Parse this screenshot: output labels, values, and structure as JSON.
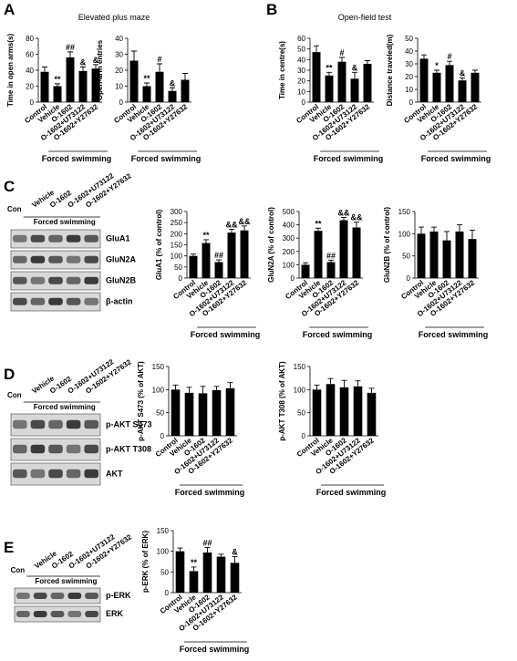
{
  "figure": {
    "panels": [
      {
        "letter": "A",
        "title": "Elevated plus maze"
      },
      {
        "letter": "B",
        "title": "Open-field test"
      },
      {
        "letter": "C"
      },
      {
        "letter": "D"
      },
      {
        "letter": "E"
      }
    ],
    "blots": [
      {
        "lanes": [
          "Con",
          "Vehicle",
          "O-1602",
          "O-1602+U73122",
          "O-1602+Y27632"
        ],
        "group": "Forced swimming",
        "bands": [
          "GluA1",
          "GluN2A",
          "GluN2B",
          "β-actin"
        ]
      },
      {
        "lanes": [
          "Con",
          "Vehicle",
          "O-1602",
          "O-1602+U73122",
          "O-1602+Y27632"
        ],
        "group": "Forced swimming",
        "bands": [
          "p-AKT S473",
          "p-AKT T308",
          "AKT"
        ]
      },
      {
        "lanes": [
          "Con",
          "Vehicle",
          "O-1602",
          "O-1602+U73122",
          "O-1602+Y27632"
        ],
        "group": "Forced swimming",
        "bands": [
          "p-ERK",
          "ERK"
        ]
      }
    ]
  },
  "chart_data": [
    {
      "type": "bar",
      "y_label": "Time in open arms(s)",
      "categories": [
        "Control",
        "Vehicle",
        "O-1602",
        "O-1602+U73122",
        "O-1602+Y27632"
      ],
      "group_label": "Forced swimming",
      "values": [
        38,
        20,
        56,
        39,
        42
      ],
      "errors": [
        6,
        3,
        7,
        5,
        5
      ],
      "annotations": [
        null,
        "**",
        "##",
        "&",
        "&"
      ],
      "color": "#000000",
      "ylim": [
        0,
        80
      ],
      "yticks": [
        0,
        20,
        40,
        60,
        80
      ]
    },
    {
      "type": "bar",
      "y_label": "Open-arm entries",
      "categories": [
        "Control",
        "Vehicle",
        "O-1602",
        "O-1602+U73122",
        "O-1602+Y27632"
      ],
      "group_label": "Forced swimming",
      "values": [
        26,
        10,
        19,
        7,
        14
      ],
      "errors": [
        6,
        2,
        5,
        2,
        4
      ],
      "annotations": [
        null,
        "**",
        "#",
        "&",
        null
      ],
      "color": "#000000",
      "ylim": [
        0,
        40
      ],
      "yticks": [
        0,
        10,
        20,
        30,
        40
      ]
    },
    {
      "type": "bar",
      "y_label": "Time in centre(s)",
      "categories": [
        "Control",
        "Vehicle",
        "O-1602",
        "O-1602+U73122",
        "O-1602+Y27632"
      ],
      "group_label": "Forced swimming",
      "values": [
        47,
        25,
        38,
        22,
        36
      ],
      "errors": [
        6,
        3,
        4,
        6,
        3
      ],
      "annotations": [
        null,
        "**",
        "#",
        "&",
        null
      ],
      "color": "#000000",
      "ylim": [
        0,
        60
      ],
      "yticks": [
        0,
        10,
        20,
        30,
        40,
        50,
        60
      ]
    },
    {
      "type": "bar",
      "y_label": "Distance traveled(m)",
      "categories": [
        "Control",
        "Vehicle",
        "O-1602",
        "O-1602+U73122",
        "O-1602+Y27632"
      ],
      "group_label": "Forced swimming",
      "values": [
        34,
        23,
        29,
        17,
        23
      ],
      "errors": [
        3,
        2,
        3,
        2,
        2
      ],
      "annotations": [
        null,
        "*",
        "#",
        "&",
        null
      ],
      "color": "#000000",
      "ylim": [
        0,
        50
      ],
      "yticks": [
        0,
        10,
        20,
        30,
        40,
        50
      ]
    },
    {
      "type": "bar",
      "y_label": "GluA1 (% of control)",
      "categories": [
        "Control",
        "Vehicle",
        "O-1602",
        "O-1602+U73122",
        "O-1602+Y27632"
      ],
      "group_label": "Forced swimming",
      "values": [
        100,
        158,
        72,
        205,
        215
      ],
      "errors": [
        8,
        15,
        10,
        15,
        20
      ],
      "annotations": [
        null,
        "**",
        "##",
        "&&",
        "&&"
      ],
      "color": "#000000",
      "ylim": [
        0,
        300
      ],
      "yticks": [
        0,
        50,
        100,
        150,
        200,
        250,
        300
      ]
    },
    {
      "type": "bar",
      "y_label": "GluN2A (% of control)",
      "categories": [
        "Control",
        "Vehicle",
        "O-1602",
        "O-1602+U73122",
        "O-1602+Y27632"
      ],
      "group_label": "Forced swimming",
      "values": [
        100,
        355,
        120,
        435,
        380
      ],
      "errors": [
        15,
        20,
        15,
        20,
        40
      ],
      "annotations": [
        null,
        "**",
        "##",
        "&&",
        "&&"
      ],
      "color": "#000000",
      "ylim": [
        0,
        500
      ],
      "yticks": [
        0,
        100,
        200,
        300,
        400,
        500
      ]
    },
    {
      "type": "bar",
      "y_label": "GluN2B (% of control)",
      "categories": [
        "Control",
        "Vehicle",
        "O-1602",
        "O-1602+U73122",
        "O-1602+Y27632"
      ],
      "group_label": "Forced swimming",
      "values": [
        100,
        105,
        85,
        105,
        88
      ],
      "errors": [
        15,
        10,
        20,
        15,
        20
      ],
      "annotations": [
        null,
        null,
        null,
        null,
        null
      ],
      "color": "#000000",
      "ylim": [
        0,
        150
      ],
      "yticks": [
        0,
        50,
        100,
        150
      ]
    },
    {
      "type": "bar",
      "y_label": "p-AKT S473 (% of AKT)",
      "categories": [
        "Control",
        "Vehicle",
        "O-1602",
        "O-1602+U73122",
        "O-1602+Y27632"
      ],
      "group_label": "Forced swimming",
      "values": [
        100,
        93,
        92,
        99,
        103
      ],
      "errors": [
        10,
        12,
        15,
        8,
        12
      ],
      "annotations": [
        null,
        null,
        null,
        null,
        null
      ],
      "color": "#000000",
      "ylim": [
        0,
        150
      ],
      "yticks": [
        0,
        50,
        100,
        150
      ]
    },
    {
      "type": "bar",
      "y_label": "p-AKT T308 (% of AKT)",
      "categories": [
        "Control",
        "Vehicle",
        "O-1602",
        "O-1602+U73122",
        "O-1602+Y27632"
      ],
      "group_label": "Forced swimming",
      "values": [
        100,
        112,
        105,
        107,
        93
      ],
      "errors": [
        10,
        12,
        15,
        12,
        10
      ],
      "annotations": [
        null,
        null,
        null,
        null,
        null
      ],
      "color": "#000000",
      "ylim": [
        0,
        150
      ],
      "yticks": [
        0,
        50,
        100,
        150
      ]
    },
    {
      "type": "bar",
      "y_label": "p-ERK (% of ERK)",
      "categories": [
        "Control",
        "Vehicle",
        "O-1602",
        "O-1602+U73122",
        "O-1602+Y27632"
      ],
      "group_label": "Forced swimming",
      "values": [
        100,
        52,
        97,
        87,
        72
      ],
      "errors": [
        8,
        10,
        12,
        6,
        15
      ],
      "annotations": [
        null,
        "**",
        "##",
        null,
        "&"
      ],
      "color": "#000000",
      "ylim": [
        0,
        150
      ],
      "yticks": [
        0,
        50,
        100,
        150
      ]
    }
  ]
}
